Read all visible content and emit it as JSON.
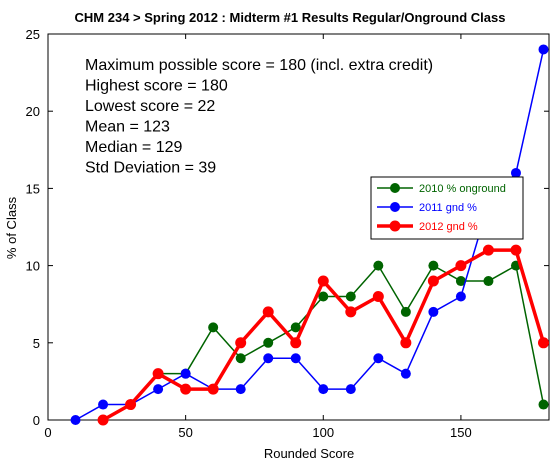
{
  "chart_data": {
    "type": "line",
    "title": "CHM 234 > Spring 2012 : Midterm #1 Results Regular/Onground Class",
    "xlabel": "Rounded Score",
    "ylabel": "% of Class",
    "xlim": [
      0,
      182
    ],
    "ylim": [
      0,
      25
    ],
    "x_ticks": [
      0,
      50,
      100,
      150
    ],
    "y_ticks": [
      0,
      5,
      10,
      15,
      20,
      25
    ],
    "annotations": [
      "Maximum possible score = 180 (incl. extra credit)",
      "Highest score = 180",
      "Lowest score = 22",
      "Mean = 123",
      "Median = 129",
      "Std Deviation = 39"
    ],
    "legend_position": "right",
    "series": [
      {
        "name": "2010 % onground",
        "color": "#006400",
        "x": [
          40,
          50,
          60,
          70,
          80,
          90,
          100,
          110,
          120,
          130,
          140,
          150,
          160,
          170,
          180
        ],
        "y": [
          3,
          3,
          6,
          4,
          5,
          6,
          8,
          8,
          10,
          7,
          10,
          9,
          9,
          10,
          1
        ]
      },
      {
        "name": "2011 gnd %",
        "color": "#0000ff",
        "x": [
          10,
          20,
          30,
          40,
          50,
          60,
          70,
          80,
          90,
          100,
          110,
          120,
          130,
          140,
          150,
          160,
          170,
          180
        ],
        "y": [
          0,
          1,
          1,
          2,
          3,
          2,
          2,
          4,
          4,
          2,
          2,
          4,
          3,
          7,
          8,
          14,
          16,
          24
        ]
      },
      {
        "name": "2012 gnd %",
        "color": "#ff0000",
        "x": [
          20,
          30,
          40,
          50,
          60,
          70,
          80,
          90,
          100,
          110,
          120,
          130,
          140,
          150,
          160,
          170,
          180
        ],
        "y": [
          0,
          1,
          3,
          2,
          2,
          5,
          7,
          5,
          9,
          7,
          8,
          5,
          9,
          10,
          11,
          11,
          5
        ]
      }
    ]
  }
}
